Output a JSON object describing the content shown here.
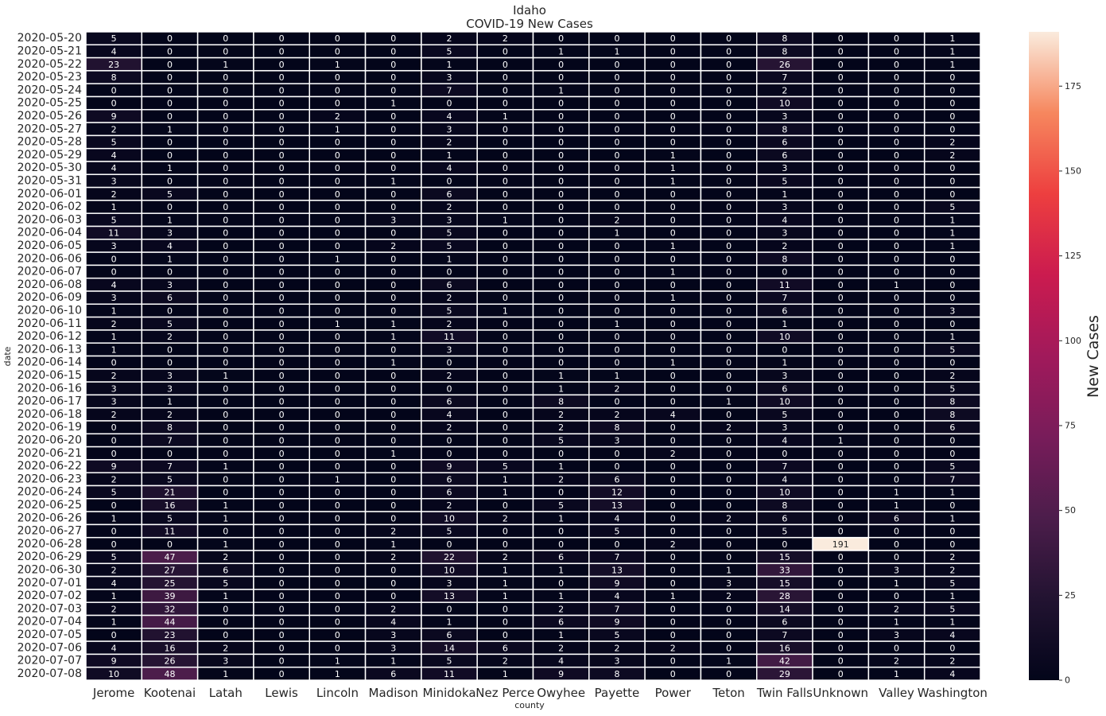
{
  "chart_data": {
    "type": "heatmap",
    "title": "Idaho",
    "subtitle": "COVID-19 New Cases",
    "xlabel": "county",
    "ylabel": "date",
    "colorbar_label": "New Cases",
    "colorbar_range": [
      0,
      191
    ],
    "colorbar_ticks": [
      0,
      25,
      50,
      75,
      100,
      125,
      150,
      175
    ],
    "colormap": "rocket",
    "columns": [
      "Jerome",
      "Kootenai",
      "Latah",
      "Lewis",
      "Lincoln",
      "Madison",
      "Minidoka",
      "Nez Perce",
      "Owyhee",
      "Payette",
      "Power",
      "Teton",
      "Twin Falls",
      "Unknown",
      "Valley",
      "Washington"
    ],
    "rows": [
      "2020-05-20",
      "2020-05-21",
      "2020-05-22",
      "2020-05-23",
      "2020-05-24",
      "2020-05-25",
      "2020-05-26",
      "2020-05-27",
      "2020-05-28",
      "2020-05-29",
      "2020-05-30",
      "2020-05-31",
      "2020-06-01",
      "2020-06-02",
      "2020-06-03",
      "2020-06-04",
      "2020-06-05",
      "2020-06-06",
      "2020-06-07",
      "2020-06-08",
      "2020-06-09",
      "2020-06-10",
      "2020-06-11",
      "2020-06-12",
      "2020-06-13",
      "2020-06-14",
      "2020-06-15",
      "2020-06-16",
      "2020-06-17",
      "2020-06-18",
      "2020-06-19",
      "2020-06-20",
      "2020-06-21",
      "2020-06-22",
      "2020-06-23",
      "2020-06-24",
      "2020-06-25",
      "2020-06-26",
      "2020-06-27",
      "2020-06-28",
      "2020-06-29",
      "2020-06-30",
      "2020-07-01",
      "2020-07-02",
      "2020-07-03",
      "2020-07-04",
      "2020-07-05",
      "2020-07-06",
      "2020-07-07",
      "2020-07-08"
    ],
    "values": [
      [
        5,
        0,
        0,
        0,
        0,
        0,
        2,
        2,
        0,
        0,
        0,
        0,
        8,
        0,
        0,
        1
      ],
      [
        4,
        0,
        0,
        0,
        0,
        0,
        5,
        0,
        1,
        1,
        0,
        0,
        8,
        0,
        0,
        1
      ],
      [
        23,
        0,
        1,
        0,
        1,
        0,
        1,
        0,
        0,
        0,
        0,
        0,
        26,
        0,
        0,
        1
      ],
      [
        8,
        0,
        0,
        0,
        0,
        0,
        3,
        0,
        0,
        0,
        0,
        0,
        7,
        0,
        0,
        0
      ],
      [
        0,
        0,
        0,
        0,
        0,
        0,
        7,
        0,
        1,
        0,
        0,
        0,
        2,
        0,
        0,
        0
      ],
      [
        0,
        0,
        0,
        0,
        0,
        1,
        0,
        0,
        0,
        0,
        0,
        0,
        10,
        0,
        0,
        0
      ],
      [
        9,
        0,
        0,
        0,
        2,
        0,
        4,
        1,
        0,
        0,
        0,
        0,
        3,
        0,
        0,
        0
      ],
      [
        2,
        1,
        0,
        0,
        1,
        0,
        3,
        0,
        0,
        0,
        0,
        0,
        8,
        0,
        0,
        0
      ],
      [
        5,
        0,
        0,
        0,
        0,
        0,
        2,
        0,
        0,
        0,
        0,
        0,
        6,
        0,
        0,
        2
      ],
      [
        4,
        0,
        0,
        0,
        0,
        0,
        1,
        0,
        0,
        0,
        1,
        0,
        6,
        0,
        0,
        2
      ],
      [
        4,
        1,
        0,
        0,
        0,
        0,
        4,
        0,
        0,
        0,
        1,
        0,
        3,
        0,
        0,
        0
      ],
      [
        3,
        0,
        0,
        0,
        0,
        1,
        0,
        0,
        0,
        0,
        1,
        0,
        5,
        0,
        0,
        0
      ],
      [
        2,
        5,
        0,
        0,
        0,
        0,
        6,
        0,
        0,
        0,
        0,
        0,
        1,
        0,
        0,
        0
      ],
      [
        1,
        0,
        0,
        0,
        0,
        0,
        2,
        0,
        0,
        0,
        0,
        0,
        3,
        0,
        0,
        5
      ],
      [
        5,
        1,
        0,
        0,
        0,
        3,
        3,
        1,
        0,
        2,
        0,
        0,
        4,
        0,
        0,
        1
      ],
      [
        11,
        3,
        0,
        0,
        0,
        0,
        5,
        0,
        0,
        1,
        0,
        0,
        3,
        0,
        0,
        1
      ],
      [
        3,
        4,
        0,
        0,
        0,
        2,
        5,
        0,
        0,
        0,
        1,
        0,
        2,
        0,
        0,
        1
      ],
      [
        0,
        1,
        0,
        0,
        1,
        0,
        1,
        0,
        0,
        0,
        0,
        0,
        8,
        0,
        0,
        0
      ],
      [
        0,
        0,
        0,
        0,
        0,
        0,
        0,
        0,
        0,
        0,
        1,
        0,
        0,
        0,
        0,
        0
      ],
      [
        4,
        3,
        0,
        0,
        0,
        0,
        6,
        0,
        0,
        0,
        0,
        0,
        11,
        0,
        1,
        0
      ],
      [
        3,
        6,
        0,
        0,
        0,
        0,
        2,
        0,
        0,
        0,
        1,
        0,
        7,
        0,
        0,
        0
      ],
      [
        1,
        0,
        0,
        0,
        0,
        0,
        5,
        1,
        0,
        0,
        0,
        0,
        6,
        0,
        0,
        3
      ],
      [
        2,
        5,
        0,
        0,
        1,
        1,
        2,
        0,
        0,
        1,
        0,
        0,
        1,
        0,
        0,
        0
      ],
      [
        1,
        2,
        0,
        0,
        0,
        1,
        11,
        0,
        0,
        0,
        0,
        0,
        10,
        0,
        0,
        1
      ],
      [
        1,
        0,
        0,
        0,
        0,
        0,
        3,
        0,
        0,
        0,
        0,
        0,
        0,
        0,
        0,
        5
      ],
      [
        0,
        0,
        0,
        0,
        0,
        1,
        0,
        0,
        0,
        0,
        1,
        0,
        1,
        0,
        0,
        0
      ],
      [
        2,
        3,
        1,
        0,
        0,
        0,
        2,
        0,
        1,
        1,
        0,
        0,
        3,
        0,
        0,
        2
      ],
      [
        3,
        3,
        0,
        0,
        0,
        0,
        0,
        0,
        1,
        2,
        0,
        0,
        6,
        0,
        0,
        5
      ],
      [
        3,
        1,
        0,
        0,
        0,
        0,
        6,
        0,
        8,
        0,
        0,
        1,
        10,
        0,
        0,
        8
      ],
      [
        2,
        2,
        0,
        0,
        0,
        0,
        4,
        0,
        2,
        2,
        4,
        0,
        5,
        0,
        0,
        8
      ],
      [
        0,
        8,
        0,
        0,
        0,
        0,
        2,
        0,
        2,
        8,
        0,
        2,
        3,
        0,
        0,
        6
      ],
      [
        0,
        7,
        0,
        0,
        0,
        0,
        0,
        0,
        5,
        3,
        0,
        0,
        4,
        1,
        0,
        0
      ],
      [
        0,
        0,
        0,
        0,
        0,
        1,
        0,
        0,
        0,
        0,
        2,
        0,
        0,
        0,
        0,
        0
      ],
      [
        9,
        7,
        1,
        0,
        0,
        0,
        9,
        5,
        1,
        0,
        0,
        0,
        7,
        0,
        0,
        5
      ],
      [
        2,
        5,
        0,
        0,
        1,
        0,
        6,
        1,
        2,
        6,
        0,
        0,
        4,
        0,
        0,
        7
      ],
      [
        5,
        21,
        0,
        0,
        0,
        0,
        6,
        1,
        0,
        12,
        0,
        0,
        10,
        0,
        1,
        1
      ],
      [
        0,
        16,
        1,
        0,
        0,
        0,
        2,
        0,
        5,
        13,
        0,
        0,
        8,
        0,
        1,
        0
      ],
      [
        1,
        5,
        1,
        0,
        0,
        0,
        10,
        2,
        1,
        4,
        0,
        2,
        6,
        0,
        6,
        1
      ],
      [
        0,
        11,
        0,
        0,
        0,
        2,
        5,
        0,
        0,
        5,
        0,
        0,
        5,
        0,
        0,
        0
      ],
      [
        0,
        0,
        1,
        0,
        0,
        1,
        0,
        0,
        0,
        0,
        2,
        0,
        0,
        191,
        0,
        0
      ],
      [
        5,
        47,
        2,
        0,
        0,
        2,
        22,
        2,
        6,
        7,
        0,
        0,
        15,
        0,
        0,
        2
      ],
      [
        2,
        27,
        6,
        0,
        0,
        0,
        10,
        1,
        1,
        13,
        0,
        1,
        33,
        0,
        3,
        2
      ],
      [
        4,
        25,
        5,
        0,
        0,
        0,
        3,
        1,
        0,
        9,
        0,
        3,
        15,
        0,
        1,
        5
      ],
      [
        1,
        39,
        1,
        0,
        0,
        0,
        13,
        1,
        1,
        4,
        1,
        2,
        28,
        0,
        0,
        1
      ],
      [
        2,
        32,
        0,
        0,
        0,
        2,
        0,
        0,
        2,
        7,
        0,
        0,
        14,
        0,
        2,
        5
      ],
      [
        1,
        44,
        0,
        0,
        0,
        4,
        1,
        0,
        6,
        9,
        0,
        0,
        6,
        0,
        1,
        1
      ],
      [
        0,
        23,
        0,
        0,
        0,
        3,
        6,
        0,
        1,
        5,
        0,
        0,
        7,
        0,
        3,
        4
      ],
      [
        4,
        16,
        2,
        0,
        0,
        3,
        14,
        6,
        2,
        2,
        2,
        0,
        16,
        0,
        0,
        0
      ],
      [
        9,
        26,
        3,
        0,
        1,
        1,
        5,
        2,
        4,
        3,
        0,
        1,
        42,
        0,
        2,
        2
      ],
      [
        10,
        48,
        1,
        0,
        1,
        6,
        11,
        1,
        9,
        8,
        0,
        0,
        29,
        0,
        1,
        4
      ]
    ]
  }
}
